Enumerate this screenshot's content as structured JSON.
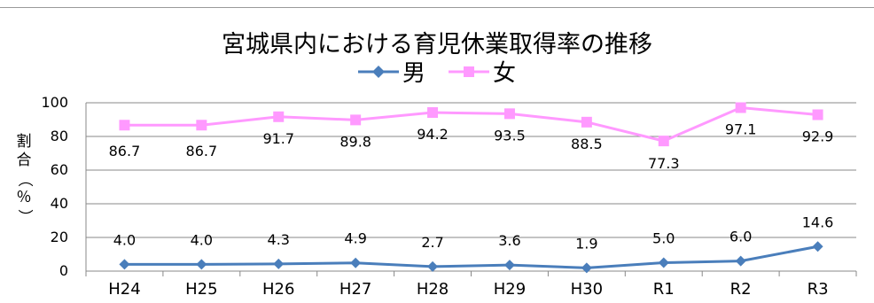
{
  "chart_data": {
    "type": "line",
    "title": "宮城県内における育児休業取得率の推移",
    "ylabel": "割合（％）",
    "xlabel": "",
    "categories": [
      "H24",
      "H25",
      "H26",
      "H27",
      "H28",
      "H29",
      "H30",
      "R1",
      "R2",
      "R3"
    ],
    "ylim": [
      0,
      100
    ],
    "yticks": [
      0,
      20,
      40,
      60,
      80,
      100
    ],
    "grid": true,
    "legend_position": "top-center",
    "series": [
      {
        "name": "男",
        "color": "#4a7ebb",
        "marker": "diamond",
        "values": [
          4.0,
          4.0,
          4.3,
          4.9,
          2.7,
          3.6,
          1.9,
          5.0,
          6.0,
          14.6
        ],
        "labels": [
          "4.0",
          "4.0",
          "4.3",
          "4.9",
          "2.7",
          "3.6",
          "1.9",
          "5.0",
          "6.0",
          "14.6"
        ]
      },
      {
        "name": "女",
        "color": "#ff99ff",
        "marker": "square",
        "values": [
          86.7,
          86.7,
          91.7,
          89.8,
          94.2,
          93.5,
          88.5,
          77.3,
          97.1,
          92.9
        ],
        "labels": [
          "86.7",
          "86.7",
          "91.7",
          "89.8",
          "94.2",
          "93.5",
          "88.5",
          "77.3",
          "97.1",
          "92.9"
        ]
      }
    ]
  }
}
